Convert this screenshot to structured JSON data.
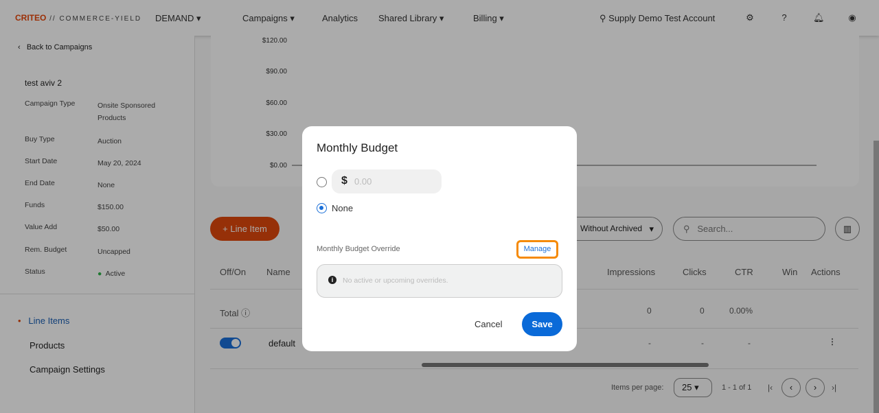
{
  "topbar": {
    "logo": "CRITEO",
    "logo_sub": "// COMMERCE-YIELD",
    "demand": "DEMAND",
    "nav": [
      "Campaigns",
      "Analytics",
      "Shared Library",
      "Billing"
    ],
    "account": "Supply Demo Test Account"
  },
  "sidebar": {
    "back": "Back to Campaigns",
    "campaign_name": "test aviv 2",
    "details": [
      {
        "label": "Campaign Type",
        "value": "Onsite Sponsored Products"
      },
      {
        "label": "Buy Type",
        "value": "Auction"
      },
      {
        "label": "Start Date",
        "value": "May 20, 2024"
      },
      {
        "label": "End Date",
        "value": "None"
      },
      {
        "label": "Funds",
        "value": "$150.00"
      },
      {
        "label": "Value Add",
        "value": "$50.00"
      },
      {
        "label": "Rem. Budget",
        "value": "Uncapped"
      },
      {
        "label": "Status",
        "value": "Active"
      }
    ],
    "nav": [
      "Line Items",
      "Products",
      "Campaign Settings"
    ],
    "status_color": "#2fb34a"
  },
  "chart_data": {
    "type": "line",
    "yticks": [
      "$120.00",
      "$90.00",
      "$60.00",
      "$30.00",
      "$0.00"
    ],
    "ylim": [
      0,
      120
    ],
    "series": [
      {
        "values": [
          0,
          0
        ]
      }
    ]
  },
  "toolbar": {
    "add_label": "+ Line Item",
    "filter": "Without Archived",
    "filter_visible": "out Archived",
    "search_placeholder": "Search..."
  },
  "table": {
    "headers": [
      "Off/On",
      "Name",
      "Impressions",
      "Clicks",
      "CTR",
      "Win",
      "Actions"
    ],
    "total": {
      "label": "Total",
      "impressions": "0",
      "clicks": "0",
      "ctr": "0.00%"
    },
    "rows": [
      {
        "name": "default",
        "enabled": true,
        "impressions": "-",
        "clicks": "-",
        "ctr": "-"
      }
    ]
  },
  "pagination": {
    "items_per_page_label": "Items per page:",
    "per_page": "25",
    "range": "1 - 1 of 1"
  },
  "modal": {
    "title": "Monthly Budget",
    "currency": "$",
    "amount_placeholder": "0.00",
    "none_label": "None",
    "selected": "None",
    "override_label": "Monthly Budget Override",
    "manage": "Manage",
    "override_info": "No active or upcoming overrides.",
    "cancel": "Cancel",
    "save": "Save",
    "accent": "#0a6ad8",
    "highlight": "#f58a07"
  }
}
